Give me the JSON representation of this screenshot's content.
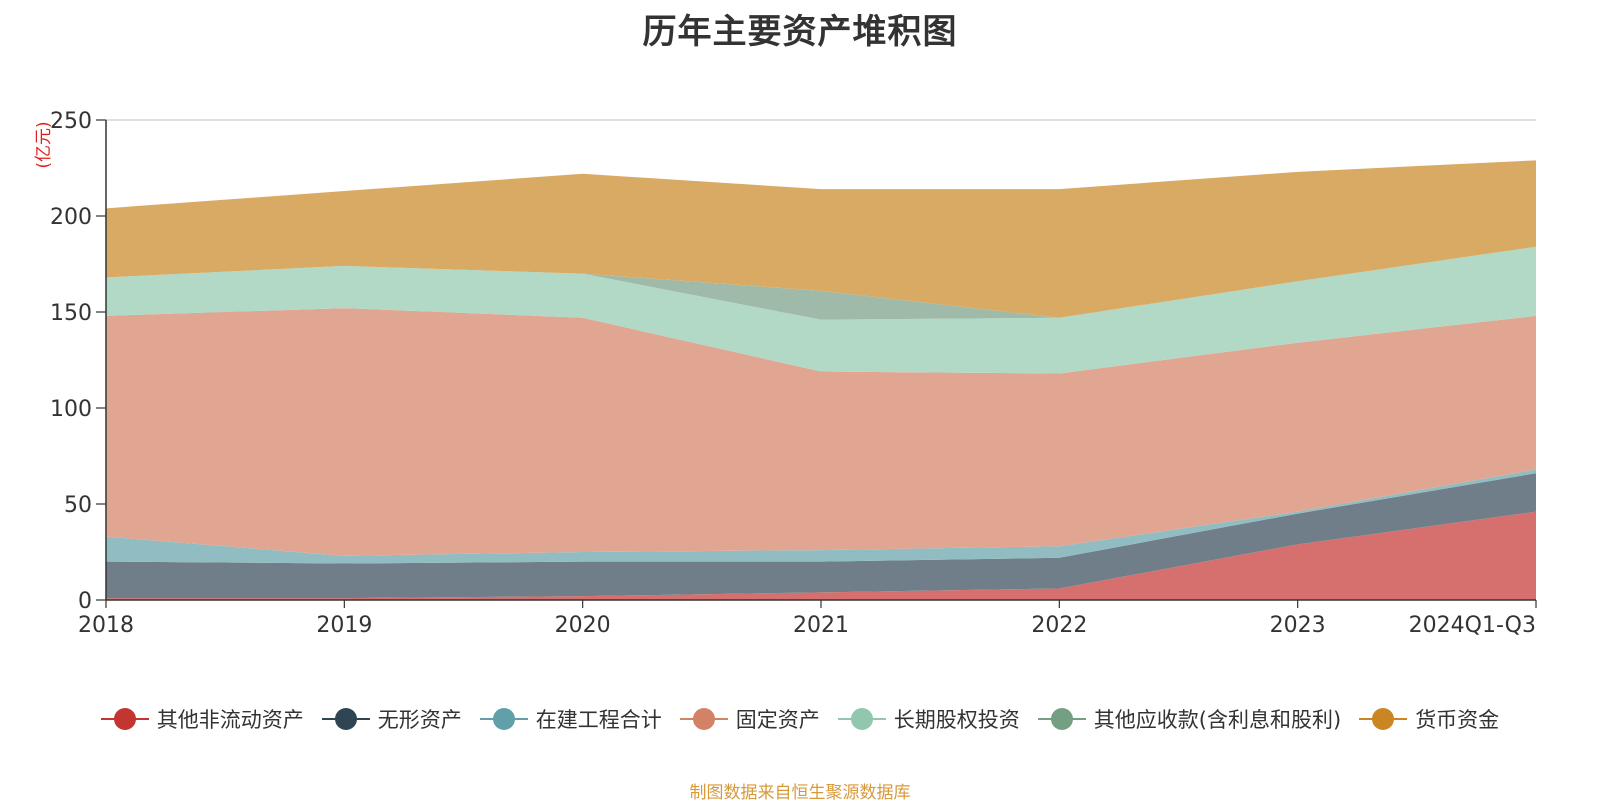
{
  "chart_data": {
    "type": "area",
    "stacked": true,
    "title": "历年主要资产堆积图",
    "ylabel": "(亿元)",
    "xlabel": "",
    "ylim": [
      0,
      250
    ],
    "yticks": [
      0,
      50,
      100,
      150,
      200,
      250
    ],
    "grid": true,
    "legend_position": "bottom",
    "categories": [
      "2018",
      "2019",
      "2020",
      "2021",
      "2022",
      "2023",
      "2024Q1-Q3"
    ],
    "series": [
      {
        "name": "其他非流动资产",
        "color": "#c23531",
        "fill": "#d6706e",
        "values": [
          1,
          1,
          2,
          4,
          6,
          29,
          46
        ]
      },
      {
        "name": "无形资产",
        "color": "#2f4554",
        "fill": "#6f7e89",
        "values": [
          19,
          18,
          18,
          16,
          16,
          16,
          20
        ]
      },
      {
        "name": "在建工程合计",
        "color": "#61a0a8",
        "fill": "#91bdc2",
        "values": [
          13,
          4,
          5,
          6,
          6,
          1,
          2
        ]
      },
      {
        "name": "固定资产",
        "color": "#d48265",
        "fill": "#e0a692",
        "values": [
          115,
          129,
          122,
          93,
          90,
          88,
          80
        ]
      },
      {
        "name": "长期股权投资",
        "color": "#91c7ae",
        "fill": "#b1d9c6",
        "values": [
          20,
          22,
          23,
          27,
          29,
          32,
          36
        ]
      },
      {
        "name": "其他应收款(含利息和股利)",
        "color": "#749f83",
        "fill": "#9fbaa8",
        "values": [
          0,
          0,
          0,
          15,
          0,
          0,
          0
        ]
      },
      {
        "name": "货币资金",
        "color": "#ca8622",
        "fill": "#d9aa64",
        "values": [
          36,
          39,
          52,
          53,
          67,
          57,
          45
        ]
      }
    ]
  },
  "source_note": "制图数据来自恒生聚源数据库"
}
